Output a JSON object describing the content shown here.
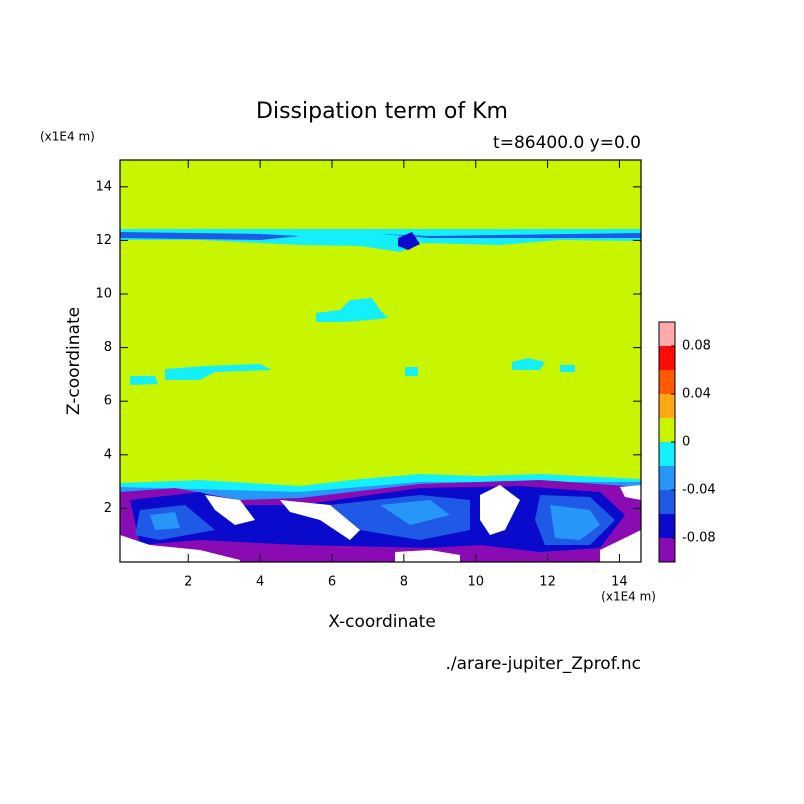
{
  "chart_data": {
    "type": "contour",
    "title": "Dissipation term of Km",
    "subtitle": "t=86400.0 y=0.0",
    "x_label": "X-coordinate",
    "y_label": "Z-coordinate",
    "x_unit": "(x1E4 m)",
    "y_unit": "(x1E4 m)",
    "source": "./arare-jupiter_Zprof.nc",
    "xlim": [
      0.1,
      14.6
    ],
    "ylim": [
      0,
      15
    ],
    "xticks": [
      2,
      4,
      6,
      8,
      10,
      12,
      14
    ],
    "yticks": [
      2,
      4,
      6,
      8,
      10,
      12,
      14
    ],
    "colorbar": {
      "levels": [
        -0.1,
        -0.08,
        -0.06,
        -0.04,
        -0.02,
        0,
        0.02,
        0.04,
        0.06,
        0.08,
        0.1
      ],
      "colors": [
        "#8a0ab4",
        "#0a0acc",
        "#1e5ae6",
        "#2896f8",
        "#14f0fa",
        "#c8f500",
        "#ffa814",
        "#ff5a00",
        "#ff0a0a",
        "#ffaaaa"
      ],
      "ticks": [
        -0.08,
        -0.04,
        0,
        0.04,
        0.08
      ]
    }
  }
}
